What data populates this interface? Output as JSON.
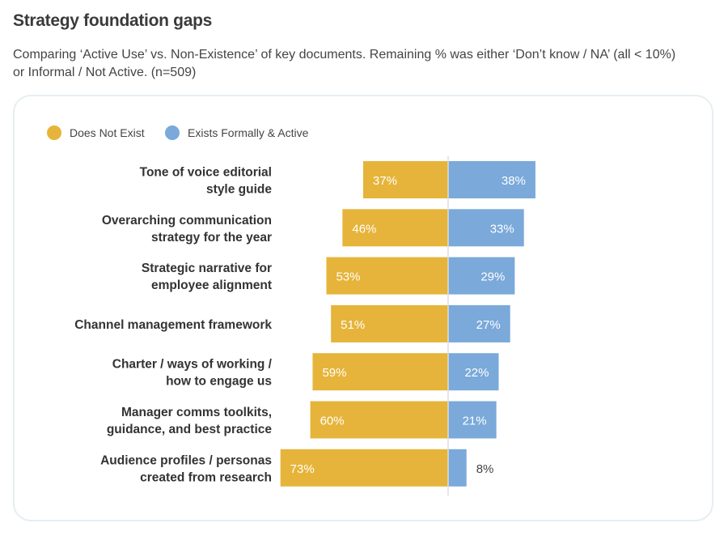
{
  "title": "Strategy foundation gaps",
  "subtitle": "Comparing ‘Active Use’ vs. Non-Existence’ of key documents. Remaining % was either ‘Don’t know / NA’ (all < 10%) or Informal / Not Active. (n=509)",
  "chart_data": {
    "type": "bar",
    "orientation": "horizontal-diverging",
    "categories": [
      [
        "Tone of voice editorial",
        "style guide"
      ],
      [
        "Overarching communication",
        "strategy for the year"
      ],
      [
        "Strategic narrative for",
        "employee alignment"
      ],
      [
        "Channel management framework"
      ],
      [
        "Charter / ways of working /",
        "how to engage us"
      ],
      [
        "Manager comms toolkits,",
        "guidance, and best practice"
      ],
      [
        "Audience profiles / personas",
        "created from research"
      ]
    ],
    "series": [
      {
        "name": "Does Not Exist",
        "color": "#e6b43a",
        "values": [
          37,
          46,
          53,
          51,
          59,
          60,
          73
        ]
      },
      {
        "name": "Exists Formally & Active",
        "color": "#7aa9da",
        "values": [
          38,
          33,
          29,
          27,
          22,
          21,
          8
        ]
      }
    ],
    "value_suffix": "%",
    "legend": "top-left",
    "grid": false
  }
}
